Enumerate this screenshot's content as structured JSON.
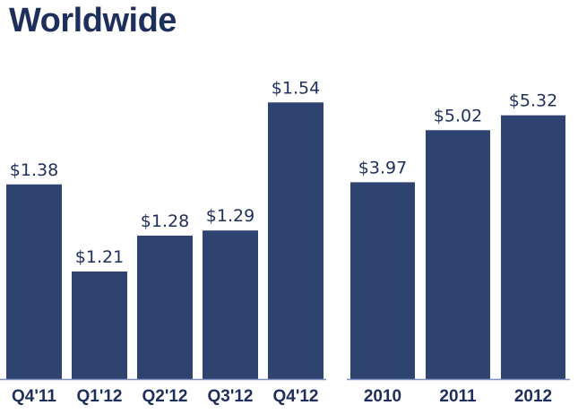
{
  "title": "Worldwide",
  "colors": {
    "bar": "#2f4370",
    "axis": "#7d8fc0",
    "text": "#1f2f5c"
  },
  "chart_data": [
    {
      "type": "bar",
      "title": "Worldwide",
      "categories": [
        "Q4'11",
        "Q1'12",
        "Q2'12",
        "Q3'12",
        "Q4'12"
      ],
      "values": [
        1.38,
        1.21,
        1.28,
        1.29,
        1.54
      ],
      "value_labels": [
        "$1.38",
        "$1.21",
        "$1.28",
        "$1.29",
        "$1.54"
      ],
      "ylim": [
        1.0,
        1.6
      ],
      "grid": false,
      "legend": "none"
    },
    {
      "type": "bar",
      "categories": [
        "2010",
        "2011",
        "2012"
      ],
      "values": [
        3.97,
        5.02,
        5.32
      ],
      "value_labels": [
        "$3.97",
        "$5.02",
        "$5.32"
      ],
      "ylim": [
        0,
        6.2
      ],
      "grid": false,
      "legend": "none"
    }
  ]
}
